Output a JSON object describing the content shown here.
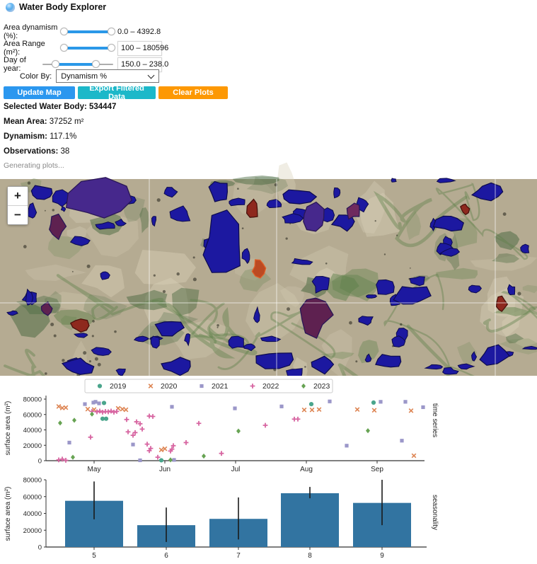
{
  "header": {
    "title": "Water Body Explorer"
  },
  "controls": {
    "sliders": [
      {
        "label": "Area dynamism (%):",
        "value": "0.0 – 4392.8"
      },
      {
        "label": "Area Range (m²):",
        "value": "100 – 180596"
      },
      {
        "label": "Day of year:",
        "value": "150.0 – 238.0"
      }
    ],
    "color_by": {
      "label": "Color By:",
      "selected": "Dynamism %"
    },
    "buttons": [
      {
        "label": "Update Map",
        "color": "#2b97ef"
      },
      {
        "label": "Export Filtered Data",
        "color": "#1cb8c9"
      },
      {
        "label": "Clear Plots",
        "color": "#fd9803"
      }
    ]
  },
  "info": {
    "selected_label": "Selected Water Body:",
    "selected_value": "534447",
    "mean_label": "Mean Area:",
    "mean_value": "37252 m²",
    "dyn_label": "Dynamism:",
    "dyn_value": "117.1%",
    "obs_label": "Observations:",
    "obs_value": "38",
    "status": "Generating plots..."
  },
  "map": {
    "zoom_in": "+",
    "zoom_out": "−",
    "colors": {
      "land": "#b5ab92",
      "land_light": "#d8d0b8",
      "veg": "#5d8049",
      "veg_dark": "#3e6137",
      "water": "#1c18a0",
      "water_edge": "#0d0b4e",
      "purple": "#46288c",
      "purple_edge": "#2a1757",
      "maroon": "#5e2150",
      "red": "#8e291e",
      "red_bright": "#bc4a22",
      "grid": "rgba(255,255,255,0.65)"
    }
  },
  "chart_data": [
    {
      "type": "scatter",
      "ylabel": "surface area (m²)",
      "right_label": "time series",
      "ylim": [
        0,
        80000
      ],
      "yticks": [
        0,
        20000,
        40000,
        60000,
        80000
      ],
      "x_tick_labels": [
        "May",
        "Jun",
        "Jul",
        "Aug",
        "Sep"
      ],
      "x_tick_pos": [
        5,
        6,
        7,
        8,
        9
      ],
      "xlim": [
        4.32,
        9.67
      ],
      "legend_position": "top",
      "series": [
        {
          "name": "2019",
          "marker": "circle",
          "color": "#4aa58c",
          "points": [
            [
              5.14,
              75000
            ],
            [
              5.12,
              54500
            ],
            [
              5.17,
              54500
            ],
            [
              5.95,
              500
            ],
            [
              8.07,
              73500
            ],
            [
              8.95,
              75500
            ]
          ]
        },
        {
          "name": "2020",
          "marker": "x",
          "color": "#dd8452",
          "points": [
            [
              4.5,
              70500
            ],
            [
              4.55,
              68500
            ],
            [
              4.6,
              69000
            ],
            [
              4.91,
              67000
            ],
            [
              5.0,
              66500
            ],
            [
              5.34,
              68000
            ],
            [
              5.4,
              67000
            ],
            [
              5.45,
              66200
            ],
            [
              5.95,
              14000
            ],
            [
              6.0,
              15500
            ],
            [
              7.97,
              66000
            ],
            [
              8.08,
              66000
            ],
            [
              8.18,
              66500
            ],
            [
              8.72,
              66500
            ],
            [
              8.96,
              65500
            ],
            [
              9.48,
              65000
            ],
            [
              9.52,
              6500
            ]
          ]
        },
        {
          "name": "2021",
          "marker": "square",
          "color": "#9b97c9",
          "points": [
            [
              4.65,
              23500
            ],
            [
              4.87,
              73500
            ],
            [
              4.99,
              75500
            ],
            [
              5.02,
              76500
            ],
            [
              5.07,
              74500
            ],
            [
              5.55,
              21000
            ],
            [
              5.65,
              500
            ],
            [
              6.1,
              70000
            ],
            [
              6.13,
              1000
            ],
            [
              6.99,
              68000
            ],
            [
              7.65,
              70500
            ],
            [
              8.33,
              77000
            ],
            [
              8.57,
              19500
            ],
            [
              9.05,
              76500
            ],
            [
              9.35,
              26000
            ],
            [
              9.4,
              76500
            ],
            [
              9.65,
              69500
            ]
          ]
        },
        {
          "name": "2022",
          "marker": "plus",
          "color": "#d765a1",
          "points": [
            [
              4.5,
              1000
            ],
            [
              4.55,
              2000
            ],
            [
              4.6,
              500
            ],
            [
              4.95,
              30500
            ],
            [
              4.97,
              64000
            ],
            [
              5.04,
              63500
            ],
            [
              5.08,
              64500
            ],
            [
              5.12,
              63000
            ],
            [
              5.16,
              64000
            ],
            [
              5.2,
              63500
            ],
            [
              5.24,
              64500
            ],
            [
              5.28,
              63000
            ],
            [
              5.32,
              64000
            ],
            [
              5.46,
              53500
            ],
            [
              5.48,
              37500
            ],
            [
              5.55,
              33000
            ],
            [
              5.58,
              36500
            ],
            [
              5.6,
              50500
            ],
            [
              5.65,
              48000
            ],
            [
              5.68,
              41000
            ],
            [
              5.78,
              58000
            ],
            [
              5.83,
              57500
            ],
            [
              5.75,
              21500
            ],
            [
              5.78,
              13000
            ],
            [
              5.8,
              16000
            ],
            [
              5.9,
              4500
            ],
            [
              6.08,
              12500
            ],
            [
              6.1,
              15000
            ],
            [
              6.12,
              19500
            ],
            [
              6.3,
              23500
            ],
            [
              6.48,
              48500
            ],
            [
              6.8,
              9500
            ],
            [
              7.42,
              46000
            ],
            [
              7.83,
              54000
            ],
            [
              7.88,
              54000
            ]
          ]
        },
        {
          "name": "2023",
          "marker": "diamond",
          "color": "#67a353",
          "points": [
            [
              4.52,
              49000
            ],
            [
              4.7,
              4500
            ],
            [
              4.72,
              52500
            ],
            [
              4.97,
              60500
            ],
            [
              6.08,
              1000
            ],
            [
              6.55,
              6000
            ],
            [
              7.04,
              38500
            ],
            [
              8.87,
              39000
            ]
          ]
        }
      ]
    },
    {
      "type": "bar",
      "ylabel": "surface area (m²)",
      "right_label": "seasonality",
      "categories": [
        "5",
        "6",
        "7",
        "8",
        "9"
      ],
      "values": [
        55000,
        26000,
        33500,
        64000,
        52500
      ],
      "err_low": [
        33000,
        6000,
        9000,
        58000,
        26000
      ],
      "err_high": [
        78000,
        47000,
        59000,
        71500,
        80000
      ],
      "ylim": [
        0,
        80000
      ],
      "yticks": [
        0,
        20000,
        40000,
        60000,
        80000
      ],
      "bar_color": "#3274a1"
    }
  ]
}
